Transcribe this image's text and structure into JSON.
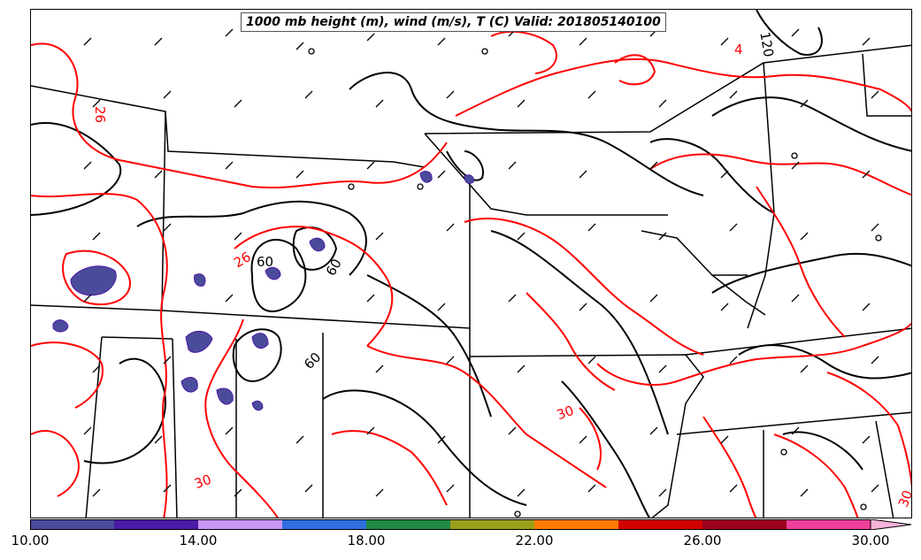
{
  "title": "1000 mb height (m), wind (m/s), T (C) Valid: 201805140100",
  "temperature_contour_labels": [
    "26",
    "26",
    "30",
    "30",
    "30",
    "4"
  ],
  "height_contour_labels": [
    "60",
    "60",
    "60",
    "120"
  ],
  "colorbar": {
    "tick_labels": [
      "10.00",
      "14.00",
      "18.00",
      "22.00",
      "26.00",
      "30.00"
    ],
    "colors": [
      "#4b4b9b",
      "#4b1aa6",
      "#c896f5",
      "#2f6fe0",
      "#1f8a45",
      "#9aa01a",
      "#ff7a00",
      "#d40000",
      "#9e0020",
      "#ee3f9a",
      "#f7b3d9"
    ]
  },
  "colors": {
    "temperature_contour": "#ff0000",
    "height_contour": "#000000",
    "precip_shading": "#4b4b9b"
  }
}
